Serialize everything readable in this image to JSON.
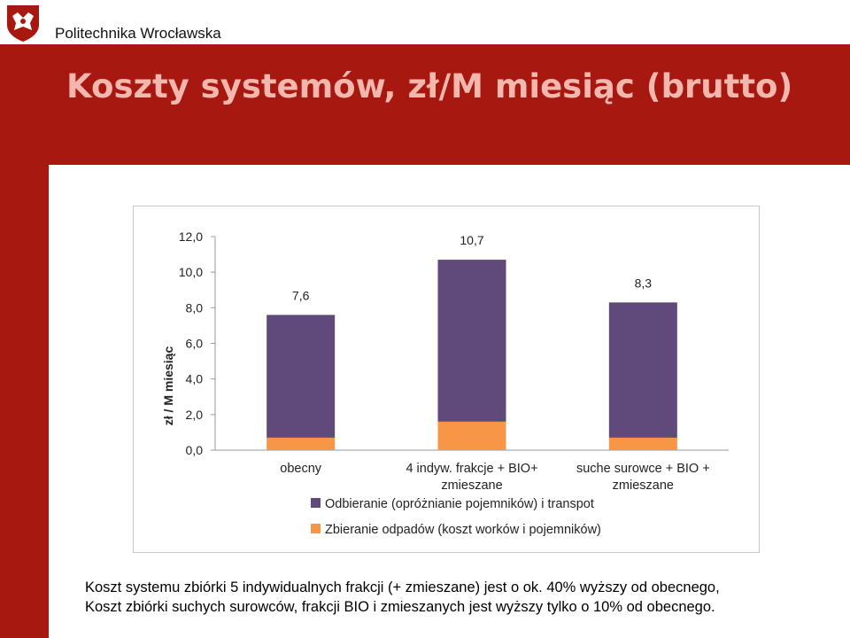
{
  "header": {
    "institution": "Politechnika Wrocławska",
    "title": "Koszty systemów, zł/M miesiąc (brutto)"
  },
  "colors": {
    "brand_red": "#a61810",
    "title_text": "#f3b7ae",
    "series_transport": "#5f4a7b",
    "series_collection": "#f79646"
  },
  "chart_data": {
    "type": "bar",
    "stacked": true,
    "categories": [
      [
        "obecny"
      ],
      [
        "4 indyw. frakcje + BIO+",
        "zmieszane"
      ],
      [
        "suche surowce + BIO +",
        "zmieszane"
      ]
    ],
    "series": [
      {
        "name": "Zbieranie odpadów (koszt worków i pojemników)",
        "values": [
          0.7,
          1.6,
          0.7
        ]
      },
      {
        "name": "Odbieranie (opróżnianie pojemników) i transpot",
        "values": [
          6.9,
          9.1,
          7.6
        ]
      }
    ],
    "totals": [
      7.6,
      10.7,
      8.3
    ],
    "total_labels": [
      "7,6",
      "10,7",
      "8,3"
    ],
    "ylabel": "zł / M miesiąc",
    "ylim": [
      0,
      12
    ],
    "yticks": [
      "0,0",
      "2,0",
      "4,0",
      "6,0",
      "8,0",
      "10,0",
      "12,0"
    ],
    "legend_order": [
      1,
      0
    ],
    "legend_position": "bottom",
    "grid": false
  },
  "caption": {
    "line1": "Koszt systemu zbiórki 5 indywidualnych frakcji (+ zmieszane)  jest o ok. 40% wyższy od obecnego,",
    "line2": "Koszt zbiórki suchych surowców, frakcji BIO i zmieszanych jest wyższy tylko o 10% od obecnego."
  }
}
